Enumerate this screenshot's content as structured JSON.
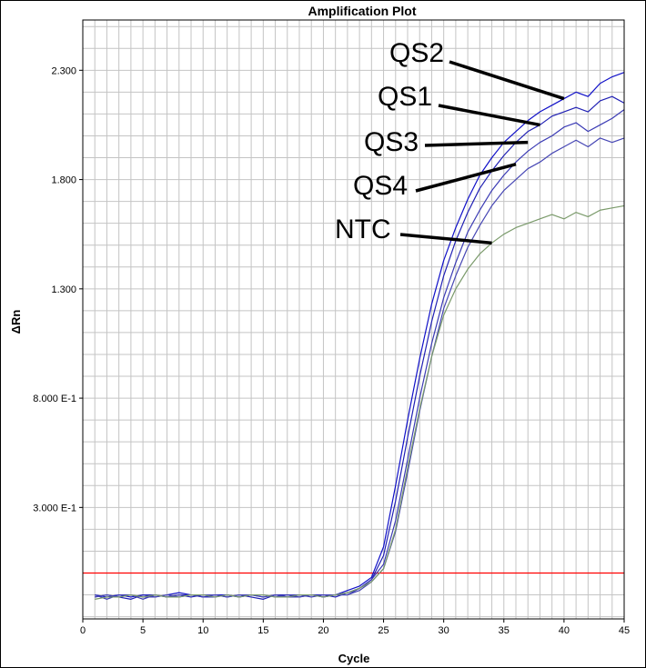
{
  "chart_data": {
    "type": "line",
    "title": "Amplification Plot",
    "xlabel": "Cycle",
    "ylabel": "ΔRn",
    "xlim": [
      0,
      45
    ],
    "ylim": [
      -0.21,
      2.53
    ],
    "grid": true,
    "x_ticks": [
      0,
      5,
      10,
      15,
      20,
      25,
      30,
      35,
      40,
      45
    ],
    "y_ticks": [
      {
        "value": 0.3,
        "label": "3.000 E-1"
      },
      {
        "value": 0.8,
        "label": "8.000 E-1"
      },
      {
        "value": 1.3,
        "label": "1.300"
      },
      {
        "value": 1.8,
        "label": "1.800"
      },
      {
        "value": 2.3,
        "label": "2.300"
      }
    ],
    "threshold": {
      "value": 0.0,
      "color": "#ff0000"
    },
    "x": [
      1,
      2,
      3,
      4,
      5,
      6,
      7,
      8,
      9,
      10,
      11,
      12,
      13,
      14,
      15,
      16,
      17,
      18,
      19,
      20,
      21,
      22,
      23,
      24,
      25,
      26,
      27,
      28,
      29,
      30,
      31,
      32,
      33,
      34,
      35,
      36,
      37,
      38,
      39,
      40,
      41,
      42,
      43,
      44,
      45
    ],
    "series": [
      {
        "color": "#1010c8",
        "values": [
          -0.1,
          -0.11,
          -0.1,
          -0.11,
          -0.1,
          -0.11,
          -0.1,
          -0.09,
          -0.1,
          -0.11,
          -0.1,
          -0.1,
          -0.11,
          -0.1,
          -0.11,
          -0.1,
          -0.11,
          -0.1,
          -0.1,
          -0.11,
          -0.1,
          -0.08,
          -0.06,
          -0.02,
          0.12,
          0.4,
          0.7,
          0.98,
          1.23,
          1.43,
          1.58,
          1.71,
          1.82,
          1.9,
          1.97,
          2.02,
          2.07,
          2.11,
          2.14,
          2.17,
          2.2,
          2.18,
          2.24,
          2.27,
          2.29
        ]
      },
      {
        "color": "#2020b4",
        "values": [
          -0.11,
          -0.1,
          -0.11,
          -0.12,
          -0.1,
          -0.1,
          -0.11,
          -0.1,
          -0.11,
          -0.1,
          -0.1,
          -0.11,
          -0.1,
          -0.11,
          -0.12,
          -0.1,
          -0.1,
          -0.11,
          -0.1,
          -0.1,
          -0.11,
          -0.09,
          -0.07,
          -0.03,
          0.08,
          0.33,
          0.62,
          0.9,
          1.15,
          1.36,
          1.52,
          1.65,
          1.76,
          1.84,
          1.91,
          1.97,
          2.02,
          2.05,
          2.09,
          2.11,
          2.13,
          2.11,
          2.16,
          2.18,
          2.15
        ]
      },
      {
        "color": "#3a3ab4",
        "values": [
          -0.1,
          -0.12,
          -0.1,
          -0.1,
          -0.12,
          -0.1,
          -0.11,
          -0.1,
          -0.1,
          -0.11,
          -0.11,
          -0.1,
          -0.11,
          -0.1,
          -0.1,
          -0.11,
          -0.1,
          -0.1,
          -0.11,
          -0.1,
          -0.1,
          -0.1,
          -0.07,
          -0.03,
          0.04,
          0.24,
          0.52,
          0.8,
          1.05,
          1.26,
          1.42,
          1.56,
          1.66,
          1.75,
          1.82,
          1.88,
          1.93,
          1.97,
          2.0,
          2.04,
          2.06,
          2.02,
          2.05,
          2.08,
          2.12
        ]
      },
      {
        "color": "#4646b4",
        "values": [
          -0.11,
          -0.1,
          -0.11,
          -0.1,
          -0.11,
          -0.11,
          -0.1,
          -0.11,
          -0.1,
          -0.1,
          -0.1,
          -0.11,
          -0.1,
          -0.1,
          -0.11,
          -0.1,
          -0.11,
          -0.11,
          -0.1,
          -0.11,
          -0.1,
          -0.1,
          -0.08,
          -0.04,
          0.02,
          0.19,
          0.46,
          0.74,
          0.99,
          1.21,
          1.36,
          1.49,
          1.59,
          1.68,
          1.75,
          1.8,
          1.85,
          1.88,
          1.92,
          1.95,
          1.98,
          1.95,
          1.99,
          1.97,
          1.99
        ]
      },
      {
        "color": "#7a9a6a",
        "values": [
          -0.12,
          -0.11,
          -0.11,
          -0.1,
          -0.11,
          -0.1,
          -0.11,
          -0.11,
          -0.1,
          -0.1,
          -0.11,
          -0.1,
          -0.11,
          -0.1,
          -0.1,
          -0.11,
          -0.11,
          -0.1,
          -0.1,
          -0.11,
          -0.1,
          -0.09,
          -0.07,
          -0.04,
          0.02,
          0.2,
          0.48,
          0.75,
          0.99,
          1.18,
          1.3,
          1.39,
          1.46,
          1.51,
          1.55,
          1.58,
          1.6,
          1.62,
          1.64,
          1.62,
          1.65,
          1.63,
          1.66,
          1.67,
          1.68
        ]
      }
    ],
    "annotations": [
      {
        "text": "QS2",
        "target": [
          40,
          2.17
        ]
      },
      {
        "text": "QS1",
        "target": [
          38,
          2.05
        ]
      },
      {
        "text": "QS3",
        "target": [
          37,
          1.97
        ]
      },
      {
        "text": "QS4",
        "target": [
          36,
          1.87
        ]
      },
      {
        "text": "NTC",
        "target": [
          34,
          1.51
        ]
      }
    ]
  }
}
